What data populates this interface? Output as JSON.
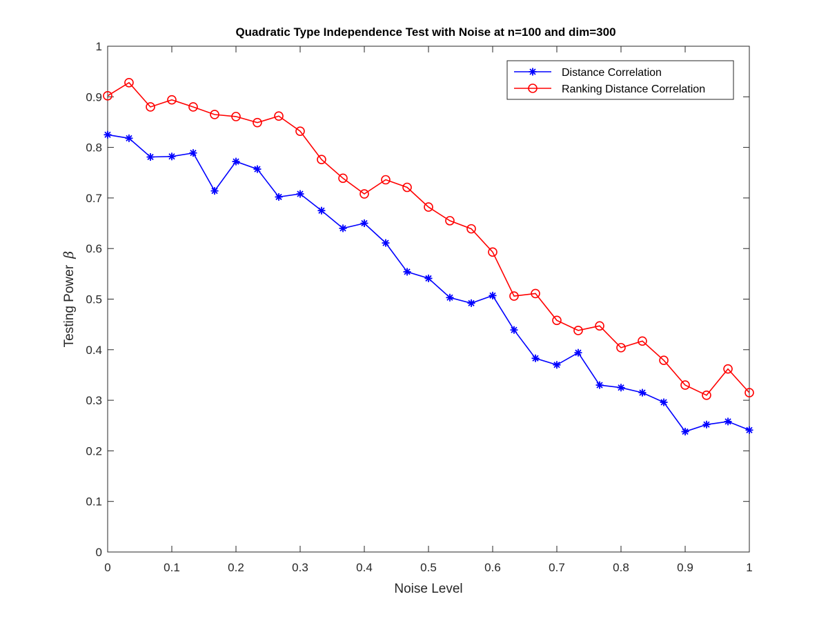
{
  "chart_data": {
    "type": "line",
    "title": "Quadratic Type Independence Test with Noise at n=100 and dim=300",
    "xlabel": "Noise Level",
    "ylabel_text": "Testing Power",
    "ylabel_symbol": "β",
    "xlim": [
      0,
      1
    ],
    "ylim": [
      0,
      1
    ],
    "xticks": [
      "0",
      "0.1",
      "0.2",
      "0.3",
      "0.4",
      "0.5",
      "0.6",
      "0.7",
      "0.8",
      "0.9",
      "1"
    ],
    "yticks": [
      "0",
      "0.1",
      "0.2",
      "0.3",
      "0.4",
      "0.5",
      "0.6",
      "0.7",
      "0.8",
      "0.9",
      "1"
    ],
    "grid": false,
    "legend_position": "top-right",
    "x": [
      0.0,
      0.0333,
      0.0667,
      0.1,
      0.1333,
      0.1667,
      0.2,
      0.2333,
      0.2667,
      0.3,
      0.3333,
      0.3667,
      0.4,
      0.4333,
      0.4667,
      0.5,
      0.5333,
      0.5667,
      0.6,
      0.6333,
      0.6667,
      0.7,
      0.7333,
      0.7667,
      0.8,
      0.8333,
      0.8667,
      0.9,
      0.9333,
      0.9667,
      1.0
    ],
    "series": [
      {
        "name": "Distance Correlation",
        "color": "#0000ff",
        "marker": "asterisk",
        "values": [
          0.825,
          0.818,
          0.781,
          0.782,
          0.789,
          0.714,
          0.772,
          0.757,
          0.702,
          0.708,
          0.675,
          0.64,
          0.65,
          0.611,
          0.554,
          0.541,
          0.503,
          0.492,
          0.507,
          0.439,
          0.383,
          0.37,
          0.394,
          0.33,
          0.325,
          0.315,
          0.296,
          0.238,
          0.252,
          0.258,
          0.241
        ]
      },
      {
        "name": "Ranking Distance Correlation",
        "color": "#ff0000",
        "marker": "circle",
        "values": [
          0.902,
          0.928,
          0.88,
          0.894,
          0.88,
          0.865,
          0.861,
          0.849,
          0.862,
          0.832,
          0.776,
          0.739,
          0.708,
          0.736,
          0.721,
          0.682,
          0.655,
          0.639,
          0.593,
          0.506,
          0.511,
          0.458,
          0.438,
          0.447,
          0.404,
          0.417,
          0.379,
          0.33,
          0.31,
          0.362,
          0.315
        ]
      }
    ]
  }
}
